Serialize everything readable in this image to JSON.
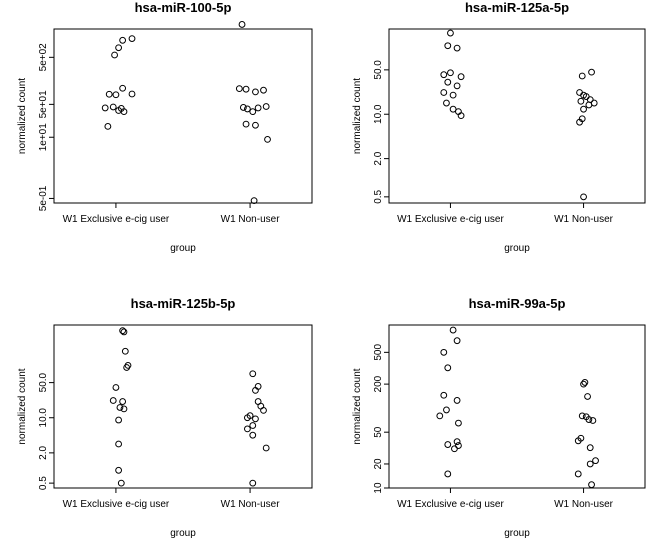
{
  "chart_data": [
    {
      "type": "scatter",
      "title": "hsa-miR-100-5p",
      "xlabel": "group",
      "ylabel": "normalized count",
      "categories": [
        "W1 Exclusive e-cig user",
        "W1 Non-user"
      ],
      "yscale": "log",
      "ylim": [
        0.4,
        2000
      ],
      "yticks": [
        0.5,
        10,
        50,
        500
      ],
      "ytick_labels": [
        "5e-01",
        "1e+01",
        "5e+01",
        "5e+02"
      ],
      "series": [
        {
          "values": [
            {
              "x": 0,
              "y": 1250,
              "jitter": 0.12
            },
            {
              "x": 0,
              "y": 1150,
              "jitter": 0.05
            },
            {
              "x": 0,
              "y": 800,
              "jitter": 0.02
            },
            {
              "x": 0,
              "y": 560,
              "jitter": -0.01
            },
            {
              "x": 0,
              "y": 110,
              "jitter": 0.05
            },
            {
              "x": 0,
              "y": 83,
              "jitter": 0.12
            },
            {
              "x": 0,
              "y": 82,
              "jitter": -0.05
            },
            {
              "x": 0,
              "y": 80,
              "jitter": 0.0
            },
            {
              "x": 0,
              "y": 44,
              "jitter": -0.02
            },
            {
              "x": 0,
              "y": 42,
              "jitter": -0.08
            },
            {
              "x": 0,
              "y": 41,
              "jitter": 0.04
            },
            {
              "x": 0,
              "y": 37,
              "jitter": 0.02
            },
            {
              "x": 0,
              "y": 35,
              "jitter": 0.06
            },
            {
              "x": 0,
              "y": 17,
              "jitter": -0.06
            },
            {
              "x": 1,
              "y": 2500,
              "jitter": -0.06
            },
            {
              "x": 1,
              "y": 108,
              "jitter": -0.08
            },
            {
              "x": 1,
              "y": 105,
              "jitter": -0.03
            },
            {
              "x": 1,
              "y": 100,
              "jitter": 0.1
            },
            {
              "x": 1,
              "y": 92,
              "jitter": 0.04
            },
            {
              "x": 1,
              "y": 45,
              "jitter": 0.12
            },
            {
              "x": 1,
              "y": 43,
              "jitter": -0.05
            },
            {
              "x": 1,
              "y": 42,
              "jitter": 0.06
            },
            {
              "x": 1,
              "y": 40,
              "jitter": -0.02
            },
            {
              "x": 1,
              "y": 35,
              "jitter": 0.02
            },
            {
              "x": 1,
              "y": 19,
              "jitter": -0.03
            },
            {
              "x": 1,
              "y": 18,
              "jitter": 0.04
            },
            {
              "x": 1,
              "y": 9,
              "jitter": 0.13
            },
            {
              "x": 1,
              "y": 0.45,
              "jitter": 0.03
            }
          ]
        }
      ]
    },
    {
      "type": "scatter",
      "title": "hsa-miR-125a-5p",
      "xlabel": "group",
      "ylabel": "normalized count",
      "categories": [
        "W1 Exclusive e-cig user",
        "W1 Non-user"
      ],
      "yscale": "log",
      "ylim": [
        0.4,
        220
      ],
      "yticks": [
        0.5,
        2.0,
        10.0,
        50.0
      ],
      "ytick_labels": [
        "0.5",
        "2.0",
        "10.0",
        "50.0"
      ],
      "series": [
        {
          "values": [
            {
              "x": 0,
              "y": 190,
              "jitter": 0.0
            },
            {
              "x": 0,
              "y": 120,
              "jitter": -0.02
            },
            {
              "x": 0,
              "y": 110,
              "jitter": 0.05
            },
            {
              "x": 0,
              "y": 45,
              "jitter": 0.0
            },
            {
              "x": 0,
              "y": 42,
              "jitter": -0.05
            },
            {
              "x": 0,
              "y": 39,
              "jitter": 0.08
            },
            {
              "x": 0,
              "y": 32,
              "jitter": -0.02
            },
            {
              "x": 0,
              "y": 28,
              "jitter": 0.05
            },
            {
              "x": 0,
              "y": 22,
              "jitter": -0.05
            },
            {
              "x": 0,
              "y": 20,
              "jitter": 0.02
            },
            {
              "x": 0,
              "y": 15,
              "jitter": -0.03
            },
            {
              "x": 0,
              "y": 12,
              "jitter": 0.02
            },
            {
              "x": 0,
              "y": 11,
              "jitter": 0.06
            },
            {
              "x": 0,
              "y": 9.5,
              "jitter": 0.08
            },
            {
              "x": 1,
              "y": 46,
              "jitter": 0.06
            },
            {
              "x": 1,
              "y": 40,
              "jitter": -0.01
            },
            {
              "x": 1,
              "y": 22,
              "jitter": -0.03
            },
            {
              "x": 1,
              "y": 20,
              "jitter": 0.0
            },
            {
              "x": 1,
              "y": 19,
              "jitter": 0.02
            },
            {
              "x": 1,
              "y": 17,
              "jitter": 0.05
            },
            {
              "x": 1,
              "y": 16,
              "jitter": -0.02
            },
            {
              "x": 1,
              "y": 15,
              "jitter": 0.08
            },
            {
              "x": 1,
              "y": 14,
              "jitter": 0.04
            },
            {
              "x": 1,
              "y": 12,
              "jitter": 0.0
            },
            {
              "x": 1,
              "y": 8.5,
              "jitter": -0.01
            },
            {
              "x": 1,
              "y": 7.5,
              "jitter": -0.03
            },
            {
              "x": 1,
              "y": 0.5,
              "jitter": 0.0
            }
          ]
        }
      ]
    },
    {
      "type": "scatter",
      "title": "hsa-miR-125b-5p",
      "xlabel": "group",
      "ylabel": "normalized count",
      "categories": [
        "W1 Exclusive e-cig user",
        "W1 Non-user"
      ],
      "yscale": "log",
      "ylim": [
        0.4,
        700
      ],
      "yticks": [
        0.5,
        2.0,
        10.0,
        50.0
      ],
      "ytick_labels": [
        "0.5",
        "2.0",
        "10.0",
        "50.0"
      ],
      "series": [
        {
          "values": [
            {
              "x": 0,
              "y": 540,
              "jitter": 0.05
            },
            {
              "x": 0,
              "y": 510,
              "jitter": 0.06
            },
            {
              "x": 0,
              "y": 210,
              "jitter": 0.07
            },
            {
              "x": 0,
              "y": 110,
              "jitter": 0.09
            },
            {
              "x": 0,
              "y": 100,
              "jitter": 0.08
            },
            {
              "x": 0,
              "y": 40,
              "jitter": 0.0
            },
            {
              "x": 0,
              "y": 22,
              "jitter": -0.02
            },
            {
              "x": 0,
              "y": 21,
              "jitter": 0.05
            },
            {
              "x": 0,
              "y": 16,
              "jitter": 0.03
            },
            {
              "x": 0,
              "y": 15,
              "jitter": 0.06
            },
            {
              "x": 0,
              "y": 9,
              "jitter": 0.02
            },
            {
              "x": 0,
              "y": 3,
              "jitter": 0.02
            },
            {
              "x": 0,
              "y": 0.9,
              "jitter": 0.02
            },
            {
              "x": 0,
              "y": 0.5,
              "jitter": 0.04
            },
            {
              "x": 1,
              "y": 75,
              "jitter": 0.02
            },
            {
              "x": 1,
              "y": 42,
              "jitter": 0.06
            },
            {
              "x": 1,
              "y": 35,
              "jitter": 0.04
            },
            {
              "x": 1,
              "y": 21,
              "jitter": 0.06
            },
            {
              "x": 1,
              "y": 17,
              "jitter": 0.08
            },
            {
              "x": 1,
              "y": 14,
              "jitter": 0.1
            },
            {
              "x": 1,
              "y": 11,
              "jitter": 0.0
            },
            {
              "x": 1,
              "y": 10,
              "jitter": -0.02
            },
            {
              "x": 1,
              "y": 9.5,
              "jitter": 0.04
            },
            {
              "x": 1,
              "y": 7,
              "jitter": 0.02
            },
            {
              "x": 1,
              "y": 6,
              "jitter": -0.02
            },
            {
              "x": 1,
              "y": 4.5,
              "jitter": 0.02
            },
            {
              "x": 1,
              "y": 2.5,
              "jitter": 0.12
            },
            {
              "x": 1,
              "y": 0.5,
              "jitter": 0.02
            }
          ]
        }
      ]
    },
    {
      "type": "scatter",
      "title": "hsa-miR-99a-5p",
      "xlabel": "group",
      "ylabel": "normalized count",
      "categories": [
        "W1 Exclusive e-cig user",
        "W1 Non-user"
      ],
      "yscale": "log",
      "ylim": [
        10,
        1100
      ],
      "yticks": [
        10,
        20,
        50,
        200,
        500
      ],
      "ytick_labels": [
        "10",
        "20",
        "50",
        "200",
        "500"
      ],
      "series": [
        {
          "values": [
            {
              "x": 0,
              "y": 950,
              "jitter": 0.02
            },
            {
              "x": 0,
              "y": 700,
              "jitter": 0.05
            },
            {
              "x": 0,
              "y": 500,
              "jitter": -0.05
            },
            {
              "x": 0,
              "y": 320,
              "jitter": -0.02
            },
            {
              "x": 0,
              "y": 145,
              "jitter": -0.05
            },
            {
              "x": 0,
              "y": 125,
              "jitter": 0.05
            },
            {
              "x": 0,
              "y": 95,
              "jitter": -0.03
            },
            {
              "x": 0,
              "y": 80,
              "jitter": -0.08
            },
            {
              "x": 0,
              "y": 65,
              "jitter": 0.06
            },
            {
              "x": 0,
              "y": 38,
              "jitter": 0.05
            },
            {
              "x": 0,
              "y": 35,
              "jitter": -0.02
            },
            {
              "x": 0,
              "y": 34,
              "jitter": 0.06
            },
            {
              "x": 0,
              "y": 31,
              "jitter": 0.03
            },
            {
              "x": 0,
              "y": 15,
              "jitter": -0.02
            },
            {
              "x": 1,
              "y": 210,
              "jitter": 0.01
            },
            {
              "x": 1,
              "y": 200,
              "jitter": 0.0
            },
            {
              "x": 1,
              "y": 140,
              "jitter": 0.03
            },
            {
              "x": 1,
              "y": 80,
              "jitter": -0.01
            },
            {
              "x": 1,
              "y": 78,
              "jitter": 0.02
            },
            {
              "x": 1,
              "y": 72,
              "jitter": 0.04
            },
            {
              "x": 1,
              "y": 70,
              "jitter": 0.07
            },
            {
              "x": 1,
              "y": 42,
              "jitter": -0.02
            },
            {
              "x": 1,
              "y": 39,
              "jitter": -0.04
            },
            {
              "x": 1,
              "y": 32,
              "jitter": 0.05
            },
            {
              "x": 1,
              "y": 22,
              "jitter": 0.09
            },
            {
              "x": 1,
              "y": 20,
              "jitter": 0.05
            },
            {
              "x": 1,
              "y": 15,
              "jitter": -0.04
            },
            {
              "x": 1,
              "y": 11,
              "jitter": 0.06
            }
          ]
        }
      ]
    }
  ]
}
